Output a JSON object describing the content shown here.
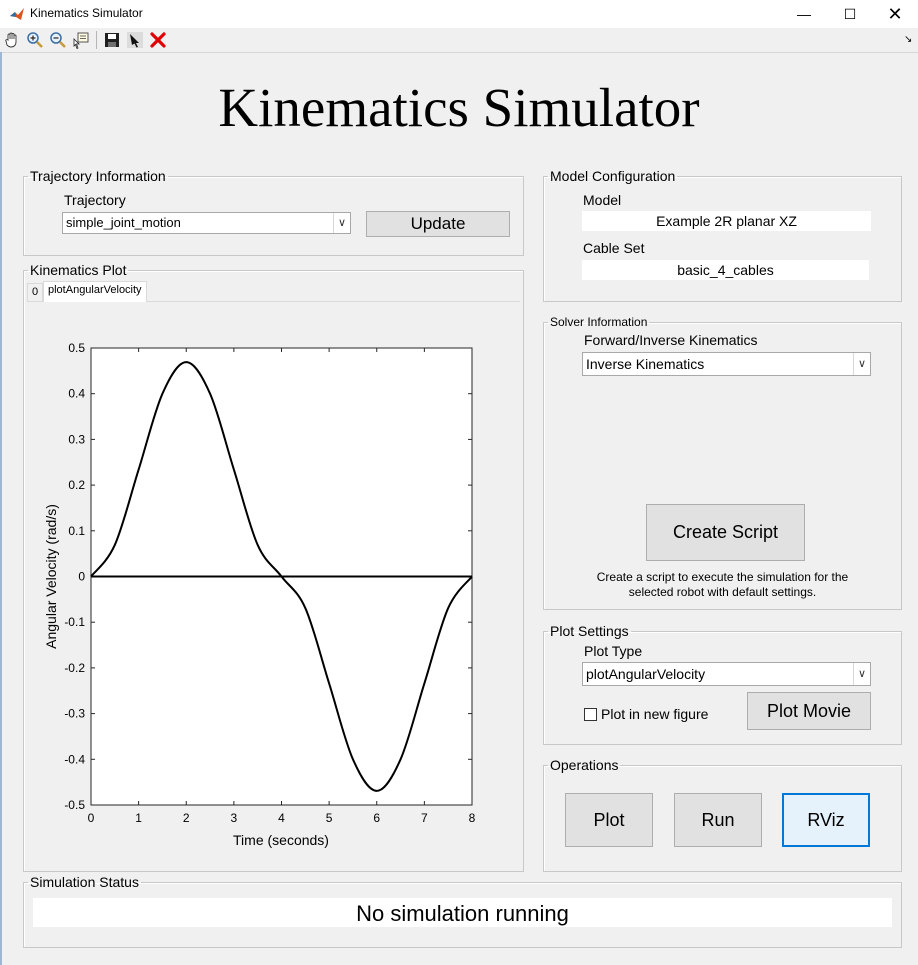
{
  "window": {
    "title": "Kinematics Simulator"
  },
  "app": {
    "title": "Kinematics Simulator"
  },
  "trajectory_panel": {
    "legend": "Trajectory Information",
    "label": "Trajectory",
    "selected": "simple_joint_motion",
    "update_label": "Update"
  },
  "plot_panel": {
    "legend": "Kinematics Plot",
    "tabs": [
      {
        "label": "0"
      },
      {
        "label": "plotAngularVelocity"
      }
    ]
  },
  "model_panel": {
    "legend": "Model Configuration",
    "model_label": "Model",
    "model_value": "Example 2R planar XZ",
    "cable_label": "Cable Set",
    "cable_value": "basic_4_cables"
  },
  "solver_panel": {
    "legend": "Solver Information",
    "label": "Forward/Inverse Kinematics",
    "selected": "Inverse Kinematics",
    "create_script_label": "Create Script",
    "description_line1": "Create a script to execute the simulation for the",
    "description_line2": "selected robot with default settings."
  },
  "plot_settings": {
    "legend": "Plot Settings",
    "type_label": "Plot Type",
    "selected": "plotAngularVelocity",
    "new_figure_label": "Plot in new figure",
    "new_figure_checked": false,
    "movie_label": "Plot Movie"
  },
  "operations": {
    "legend": "Operations",
    "plot_label": "Plot",
    "run_label": "Run",
    "rviz_label": "RViz"
  },
  "status": {
    "legend": "Simulation Status",
    "text": "No simulation running"
  },
  "chart_data": {
    "type": "line",
    "xlabel": "Time (seconds)",
    "ylabel": "Angular Velocity (rad/s)",
    "xlim": [
      0,
      8
    ],
    "ylim": [
      -0.5,
      0.5
    ],
    "xticks": [
      0,
      1,
      2,
      3,
      4,
      5,
      6,
      7,
      8
    ],
    "yticks": [
      -0.5,
      -0.4,
      -0.3,
      -0.2,
      -0.1,
      0,
      0.1,
      0.2,
      0.3,
      0.4,
      0.5
    ],
    "grid": false,
    "series": [
      {
        "color": "#000000",
        "x": [
          0,
          0.5,
          1,
          1.5,
          2,
          2.5,
          3,
          3.5,
          4,
          4.5,
          5,
          5.5,
          6,
          6.5,
          7,
          7.5,
          8
        ],
        "y": [
          0,
          0.069,
          0.234,
          0.4,
          0.469,
          0.4,
          0.234,
          0.069,
          0,
          -0.069,
          -0.234,
          -0.4,
          -0.469,
          -0.4,
          -0.234,
          -0.069,
          0
        ]
      },
      {
        "color": "#000000",
        "x": [
          0,
          8
        ],
        "y": [
          0,
          0
        ]
      }
    ]
  }
}
